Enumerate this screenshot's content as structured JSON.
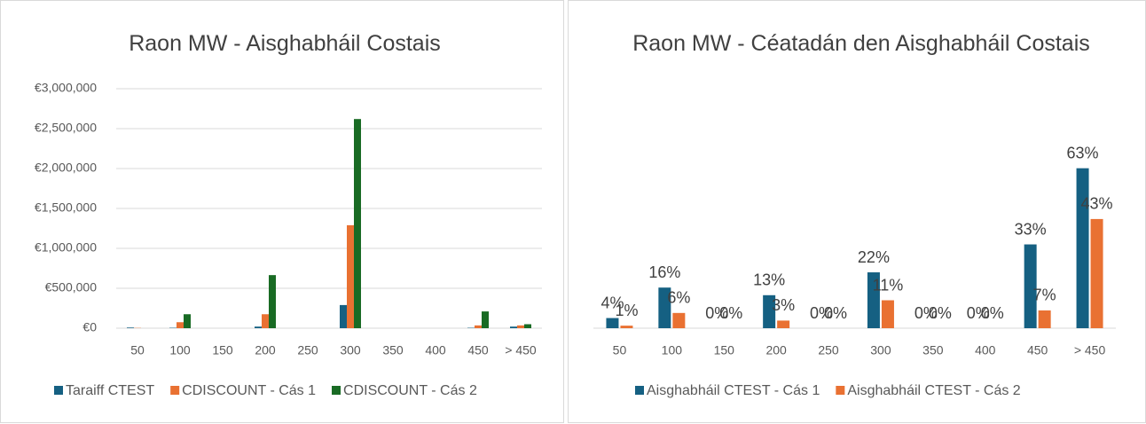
{
  "chart_data": [
    {
      "type": "bar",
      "title": "Raon MW - Aisghabháil Costais",
      "categories": [
        "50",
        "100",
        "150",
        "200",
        "250",
        "300",
        "350",
        "400",
        "450",
        "> 450"
      ],
      "series": [
        {
          "name": "Taraiff CTEST",
          "color": "#156082",
          "values": [
            8000,
            5000,
            0,
            20000,
            0,
            290000,
            0,
            0,
            5000,
            20000
          ]
        },
        {
          "name": "CDISCOUNT - Cás 1",
          "color": "#e97132",
          "values": [
            3000,
            75000,
            0,
            175000,
            0,
            1290000,
            0,
            0,
            35000,
            35000
          ]
        },
        {
          "name": "CDISCOUNT - Cás 2",
          "color": "#196b24",
          "values": [
            0,
            175000,
            0,
            665000,
            0,
            2620000,
            0,
            0,
            210000,
            50000
          ]
        }
      ],
      "ylim": [
        0,
        3000000
      ],
      "yticks": [
        {
          "value": 0,
          "label": "€0"
        },
        {
          "value": 500000,
          "label": "€500,000"
        },
        {
          "value": 1000000,
          "label": "€1,000,000"
        },
        {
          "value": 1500000,
          "label": "€1,500,000"
        },
        {
          "value": 2000000,
          "label": "€2,000,000"
        },
        {
          "value": 2500000,
          "label": "€2,500,000"
        },
        {
          "value": 3000000,
          "label": "€3,000,000"
        }
      ],
      "grid": true,
      "legend": "bottom"
    },
    {
      "type": "bar",
      "title": "Raon MW - Céatadán den Aisghabháil Costais",
      "categories": [
        "50",
        "100",
        "150",
        "200",
        "250",
        "300",
        "350",
        "400",
        "450",
        "> 450"
      ],
      "series": [
        {
          "name": "Aisghabháil CTEST - Cás 1",
          "color": "#156082",
          "values": [
            4,
            16,
            0,
            13,
            0,
            22,
            0,
            0,
            33,
            63
          ],
          "value_labels": [
            "4%",
            "16%",
            "0%",
            "13%",
            "0%",
            "22%",
            "0%",
            "0%",
            "33%",
            "63%"
          ]
        },
        {
          "name": "Aisghabháil CTEST - Cás 2",
          "color": "#e97132",
          "values": [
            1,
            6,
            0,
            3,
            0,
            11,
            0,
            0,
            7,
            43
          ],
          "value_labels": [
            "1%",
            "6%",
            "0%",
            "3%",
            "0%",
            "11%",
            "0%",
            "0%",
            "7%",
            "43%"
          ]
        }
      ],
      "ylim": [
        0,
        80
      ],
      "grid": false,
      "legend": "bottom"
    }
  ]
}
